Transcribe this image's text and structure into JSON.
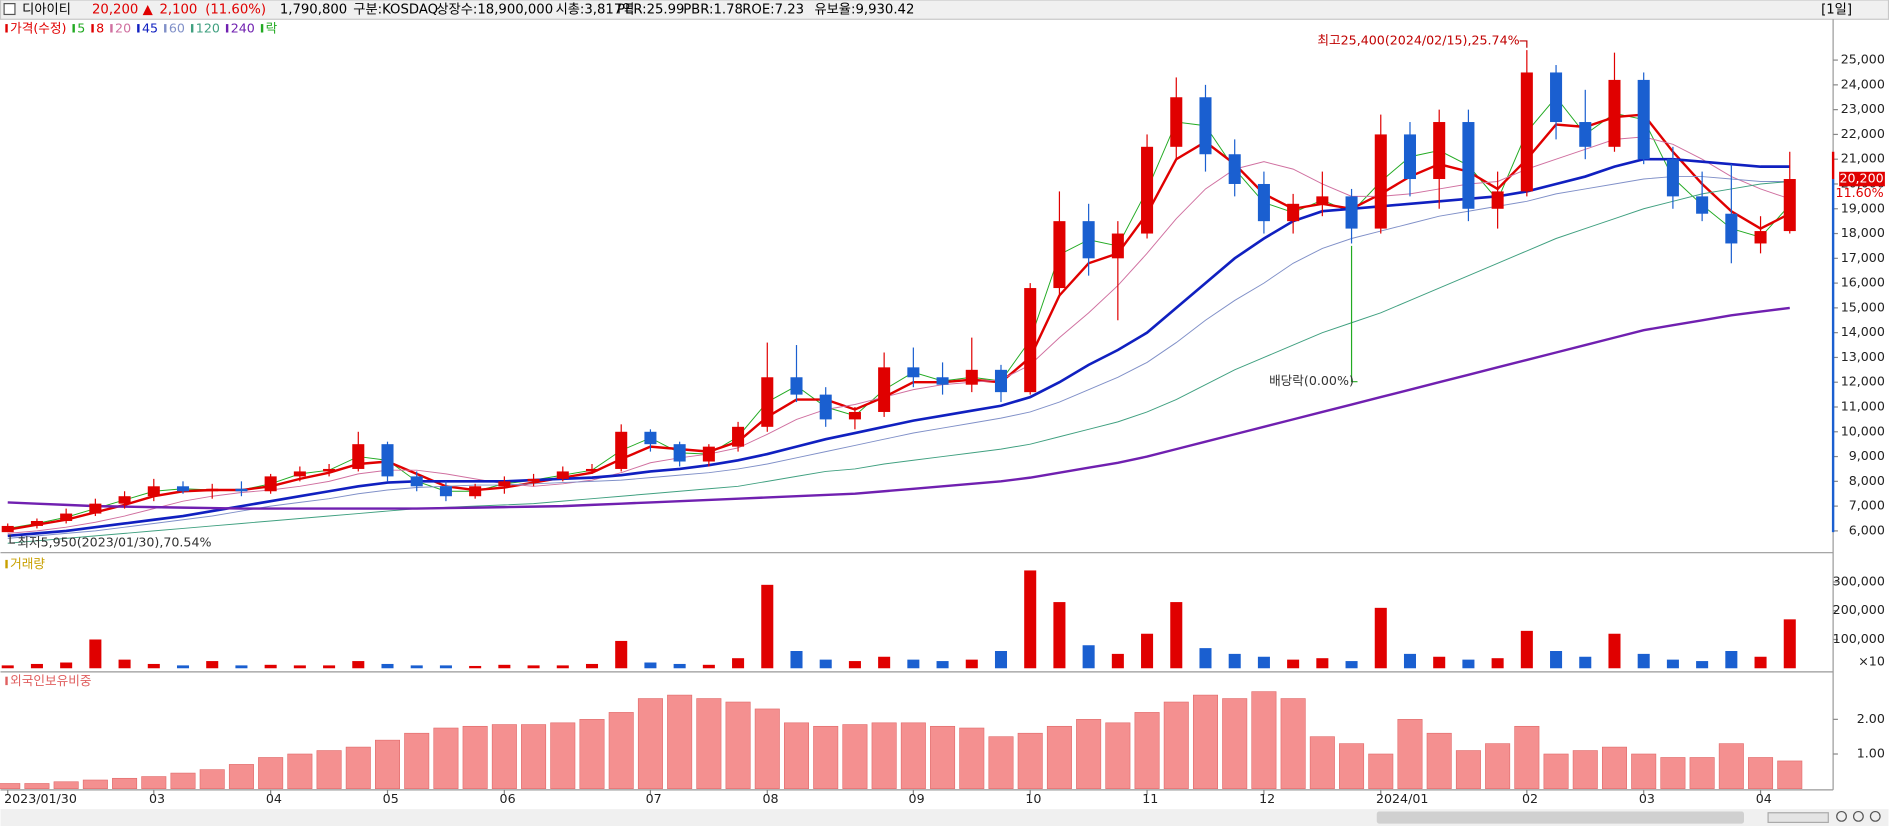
{
  "header": {
    "name": "디아이티",
    "price": "20,200",
    "arrow": "▲",
    "change": "2,100",
    "change_pct": "(11.60%)",
    "volume": "1,790,800",
    "market": "구분:KOSDAQ",
    "shares": "상장수:18,900,000",
    "cap": "시총:3,817억",
    "per": "PER:25.99",
    "pbr": "PBR:1.78",
    "roe": "ROE:7.23",
    "reserve": "유보율:9,930.42",
    "period": "[1일]"
  },
  "chart_data": [
    {
      "type": "candlestick",
      "price_name": "가격(수정)",
      "dividend_legend": "락",
      "up_color": "#e00000",
      "down_color": "#1a5fd0",
      "ylim": [
        5170,
        26550
      ],
      "yticks": [
        {
          "value": 6000,
          "label": "6,000"
        },
        {
          "value": 7000,
          "label": "7,000"
        },
        {
          "value": 8000,
          "label": "8,000"
        },
        {
          "value": 9000,
          "label": "9,000"
        },
        {
          "value": 10000,
          "label": "10,000"
        },
        {
          "value": 11000,
          "label": "11,000"
        },
        {
          "value": 12000,
          "label": "12,000"
        },
        {
          "value": 13000,
          "label": "13,000"
        },
        {
          "value": 14000,
          "label": "14,000"
        },
        {
          "value": 15000,
          "label": "15,000"
        },
        {
          "value": 16000,
          "label": "16,000"
        },
        {
          "value": 17000,
          "label": "17,000"
        },
        {
          "value": 18000,
          "label": "18,000"
        },
        {
          "value": 19000,
          "label": "19,000"
        },
        {
          "value": 20000,
          "label": "20,000"
        },
        {
          "value": 21000,
          "label": "21,000"
        },
        {
          "value": 22000,
          "label": "22,000"
        },
        {
          "value": 23000,
          "label": "23,000"
        },
        {
          "value": 24000,
          "label": "24,000"
        },
        {
          "value": 25000,
          "label": "25,000"
        }
      ],
      "open": [
        5950,
        6200,
        6400,
        6700,
        7100,
        7400,
        7800,
        7600,
        7700,
        7600,
        8200,
        8400,
        8500,
        9500,
        8200,
        7800,
        7400,
        7800,
        8000,
        8100,
        8400,
        8500,
        10000,
        9500,
        8800,
        9400,
        10200,
        12200,
        11500,
        10500,
        10800,
        12600,
        12200,
        11900,
        12500,
        11600,
        15800,
        18500,
        17000,
        18000,
        21500,
        23500,
        21200,
        20000,
        18500,
        19200,
        19500,
        18200,
        22000,
        20200,
        22500,
        19000,
        19700,
        24500,
        22500,
        21500,
        24200,
        21000,
        19500,
        18800,
        17600,
        18100
      ],
      "high": [
        6300,
        6500,
        6900,
        7300,
        7600,
        8100,
        8000,
        7900,
        8000,
        8300,
        8600,
        8700,
        10000,
        9600,
        8400,
        8000,
        7900,
        8200,
        8300,
        8600,
        8700,
        10300,
        10100,
        9600,
        9500,
        10400,
        13600,
        13500,
        11800,
        11000,
        13200,
        13400,
        12800,
        13800,
        12700,
        16000,
        19700,
        19200,
        18500,
        22000,
        24300,
        24000,
        21800,
        20500,
        19600,
        20500,
        19800,
        22800,
        22500,
        23000,
        23000,
        20500,
        25400,
        24800,
        23800,
        25300,
        24500,
        21500,
        20500,
        20800,
        18700,
        21300
      ],
      "low": [
        5950,
        6100,
        6300,
        6600,
        6900,
        7200,
        7500,
        7300,
        7400,
        7500,
        8000,
        8200,
        8400,
        8000,
        7600,
        7200,
        7300,
        7500,
        7800,
        8000,
        8300,
        8400,
        9200,
        8600,
        8600,
        9200,
        10000,
        11200,
        10200,
        10100,
        10600,
        11800,
        11500,
        11600,
        11200,
        11500,
        15500,
        16300,
        14500,
        17800,
        21000,
        20500,
        19500,
        18000,
        18000,
        18700,
        17600,
        18000,
        19500,
        19000,
        18500,
        18200,
        19500,
        21800,
        21000,
        21300,
        20800,
        19000,
        18500,
        16800,
        17200,
        18000
      ],
      "close": [
        6200,
        6400,
        6700,
        7100,
        7400,
        7800,
        7600,
        7700,
        7600,
        8200,
        8400,
        8500,
        9500,
        8200,
        7800,
        7400,
        7800,
        8000,
        8100,
        8400,
        8500,
        10000,
        9500,
        8800,
        9400,
        10200,
        12200,
        11500,
        10500,
        10800,
        12600,
        12200,
        11900,
        12500,
        11600,
        15800,
        18500,
        17000,
        18000,
        21500,
        23500,
        21200,
        20000,
        18500,
        19200,
        19500,
        18200,
        22000,
        20200,
        22500,
        19000,
        19700,
        24500,
        22500,
        21500,
        24200,
        21000,
        19500,
        18800,
        17600,
        18100,
        20200
      ],
      "series": [
        {
          "name": "5",
          "color": "#22aa22",
          "width": 0.8,
          "values": [
            6100,
            6300,
            6550,
            6900,
            7250,
            7600,
            7700,
            7650,
            7650,
            7900,
            8300,
            8450,
            9000,
            8850,
            8000,
            7600,
            7600,
            7900,
            8050,
            8250,
            8450,
            9250,
            9750,
            9150,
            9100,
            9800,
            11200,
            11850,
            11000,
            10650,
            11700,
            12400,
            12050,
            12200,
            12050,
            13700,
            17150,
            17750,
            17500,
            19750,
            22500,
            22350,
            20600,
            19250,
            18850,
            19350,
            18850,
            20100,
            21100,
            21350,
            20750,
            19350,
            22100,
            23500,
            22000,
            22850,
            22600,
            20250,
            19150,
            18200,
            17850,
            19150
          ]
        },
        {
          "name": "8",
          "color": "#e00000",
          "width": 2,
          "values": [
            6050,
            6250,
            6450,
            6750,
            7050,
            7400,
            7600,
            7650,
            7650,
            7800,
            8100,
            8350,
            8700,
            8800,
            8300,
            7800,
            7650,
            7750,
            7950,
            8150,
            8350,
            8900,
            9400,
            9300,
            9200,
            9600,
            10600,
            11300,
            11300,
            10900,
            11400,
            12000,
            12000,
            12100,
            12000,
            13000,
            15500,
            16800,
            17200,
            18800,
            21000,
            21700,
            20800,
            19600,
            19000,
            19200,
            19000,
            19600,
            20300,
            20800,
            20500,
            19800,
            21000,
            22400,
            22300,
            22700,
            22800,
            21300,
            20000,
            18900,
            18200,
            18800
          ]
        },
        {
          "name": "20",
          "color": "#d070a0",
          "width": 0.8,
          "values": [
            5900,
            6000,
            6150,
            6350,
            6600,
            6900,
            7200,
            7400,
            7550,
            7650,
            7800,
            8000,
            8300,
            8450,
            8450,
            8300,
            8100,
            7900,
            7800,
            7900,
            8050,
            8350,
            8750,
            8950,
            9100,
            9350,
            9900,
            10500,
            10900,
            11100,
            11400,
            11700,
            11900,
            12000,
            12100,
            12700,
            13800,
            14800,
            15900,
            17200,
            18600,
            19800,
            20600,
            20900,
            20600,
            20000,
            19500,
            19500,
            19600,
            19800,
            20000,
            20100,
            20600,
            21000,
            21400,
            21800,
            21900,
            21600,
            21000,
            20300,
            19800,
            19400
          ]
        },
        {
          "name": "45",
          "color": "#1020c0",
          "width": 2.2,
          "values": [
            5800,
            5900,
            6000,
            6150,
            6300,
            6450,
            6600,
            6800,
            7000,
            7200,
            7400,
            7600,
            7800,
            7950,
            8000,
            8000,
            8000,
            8000,
            8050,
            8100,
            8150,
            8250,
            8400,
            8500,
            8650,
            8850,
            9100,
            9400,
            9700,
            9950,
            10200,
            10450,
            10650,
            10850,
            11050,
            11400,
            12000,
            12700,
            13300,
            14000,
            15000,
            16000,
            17000,
            17800,
            18500,
            18900,
            19000,
            19100,
            19200,
            19300,
            19400,
            19500,
            19700,
            20000,
            20300,
            20700,
            21000,
            21000,
            20900,
            20800,
            20700,
            20700
          ]
        },
        {
          "name": "60",
          "color": "#8090c8",
          "width": 0.8,
          "values": [
            5700,
            5800,
            5900,
            6000,
            6150,
            6300,
            6450,
            6600,
            6800,
            7000,
            7150,
            7300,
            7500,
            7650,
            7750,
            7800,
            7850,
            7850,
            7900,
            7950,
            8000,
            8050,
            8150,
            8250,
            8350,
            8500,
            8700,
            8950,
            9200,
            9450,
            9700,
            9950,
            10150,
            10350,
            10550,
            10800,
            11200,
            11700,
            12200,
            12800,
            13600,
            14500,
            15300,
            16000,
            16800,
            17400,
            17800,
            18100,
            18400,
            18700,
            18900,
            19100,
            19300,
            19600,
            19800,
            20000,
            20200,
            20300,
            20300,
            20200,
            20100,
            20100
          ]
        },
        {
          "name": "120",
          "color": "#40a080",
          "width": 0.8,
          "values": [
            5500,
            5600,
            5700,
            5800,
            5900,
            6000,
            6100,
            6200,
            6300,
            6400,
            6500,
            6600,
            6700,
            6800,
            6900,
            6950,
            7000,
            7050,
            7100,
            7200,
            7300,
            7400,
            7500,
            7600,
            7700,
            7800,
            8000,
            8200,
            8400,
            8500,
            8700,
            8850,
            9000,
            9150,
            9300,
            9500,
            9800,
            10100,
            10400,
            10800,
            11300,
            11900,
            12500,
            13000,
            13500,
            14000,
            14400,
            14800,
            15300,
            15800,
            16300,
            16800,
            17300,
            17800,
            18200,
            18600,
            19000,
            19300,
            19600,
            19800,
            20000,
            20100
          ]
        },
        {
          "name": "240",
          "color": "#7020b0",
          "width": 2,
          "values": [
            7150,
            7100,
            7050,
            7000,
            6980,
            6960,
            6940,
            6920,
            6900,
            6900,
            6900,
            6900,
            6900,
            6900,
            6900,
            6920,
            6940,
            6960,
            6980,
            7000,
            7050,
            7100,
            7150,
            7200,
            7250,
            7300,
            7350,
            7400,
            7450,
            7500,
            7600,
            7700,
            7800,
            7900,
            8000,
            8150,
            8350,
            8550,
            8750,
            9000,
            9300,
            9600,
            9900,
            10200,
            10500,
            10800,
            11100,
            11400,
            11700,
            12000,
            12300,
            12600,
            12900,
            13200,
            13500,
            13800,
            14100,
            14300,
            14500,
            14700,
            14850,
            15000
          ]
        }
      ],
      "dividend_color": "#22aa22",
      "annotations": {
        "high": "최고25,400(2024/02/15),25.74%",
        "low": "최저5,950(2023/01/30),70.54%",
        "dividend": "배당락(0.00%)"
      },
      "price_marker": {
        "price": "20,200",
        "pct": "11.60%"
      }
    },
    {
      "type": "bar",
      "title": "거래량",
      "unit": "×10",
      "ylim": [
        0,
        385000
      ],
      "yticks": [
        {
          "value": 100000,
          "label": "100,000"
        },
        {
          "value": 200000,
          "label": "200,000"
        },
        {
          "value": 300000,
          "label": "300,000"
        }
      ],
      "values": [
        10000,
        15000,
        20000,
        100000,
        30000,
        15000,
        10000,
        25000,
        10000,
        12000,
        10000,
        10000,
        25000,
        15000,
        10000,
        10000,
        8000,
        12000,
        10000,
        10000,
        15000,
        95000,
        20000,
        15000,
        12000,
        35000,
        290000,
        60000,
        30000,
        25000,
        40000,
        30000,
        25000,
        30000,
        60000,
        340000,
        230000,
        80000,
        50000,
        120000,
        230000,
        70000,
        50000,
        40000,
        30000,
        35000,
        25000,
        210000,
        50000,
        40000,
        30000,
        35000,
        130000,
        60000,
        40000,
        120000,
        50000,
        30000,
        25000,
        60000,
        40000,
        170000
      ]
    },
    {
      "type": "bar",
      "title": "외국인보유비중",
      "color": "#f49090",
      "ylim": [
        0,
        3.3
      ],
      "yticks": [
        {
          "value": 1,
          "label": "1.00"
        },
        {
          "value": 2,
          "label": "2.00"
        }
      ],
      "values": [
        0.15,
        0.15,
        0.2,
        0.25,
        0.3,
        0.35,
        0.45,
        0.55,
        0.7,
        0.9,
        1.0,
        1.1,
        1.2,
        1.4,
        1.6,
        1.75,
        1.8,
        1.85,
        1.85,
        1.9,
        2.0,
        2.2,
        2.6,
        2.7,
        2.6,
        2.5,
        2.3,
        1.9,
        1.8,
        1.85,
        1.9,
        1.9,
        1.8,
        1.75,
        1.5,
        1.6,
        1.8,
        2.0,
        1.9,
        2.2,
        2.5,
        2.7,
        2.6,
        2.8,
        2.6,
        1.5,
        1.3,
        1.0,
        2.0,
        1.6,
        1.1,
        1.3,
        1.8,
        1.0,
        1.1,
        1.2,
        1.0,
        0.9,
        0.9,
        1.3,
        0.9,
        0.8
      ],
      "categories": [
        "2023/01/30",
        null,
        null,
        null,
        null,
        "03",
        null,
        null,
        null,
        "04",
        null,
        null,
        null,
        "05",
        null,
        null,
        null,
        "06",
        null,
        null,
        null,
        null,
        "07",
        null,
        null,
        null,
        "08",
        null,
        null,
        null,
        null,
        "09",
        null,
        null,
        null,
        "10",
        null,
        null,
        null,
        "11",
        null,
        null,
        null,
        "12",
        null,
        null,
        null,
        "2024/01",
        null,
        null,
        null,
        null,
        "02",
        null,
        null,
        null,
        "03",
        null,
        null,
        null,
        "04",
        null
      ]
    }
  ]
}
